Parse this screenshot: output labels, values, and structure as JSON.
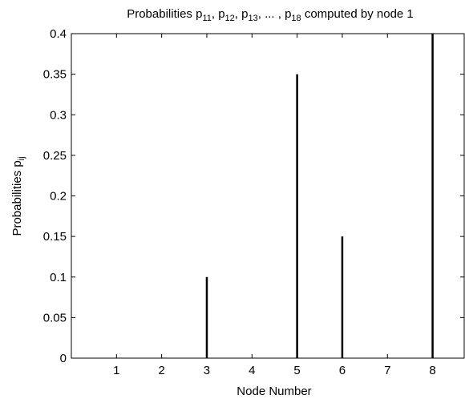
{
  "chart_data": {
    "type": "bar",
    "title": {
      "prefix": "Probabilities p",
      "s1": "11",
      "sep1": ", p",
      "s2": "12",
      "sep2": ", p",
      "s3": "13",
      "sep3": ", ... , p",
      "s4": "18",
      "suffix": " computed by node 1"
    },
    "xlabel": "Node Number",
    "ylabel": {
      "main": "Probabilities p",
      "sub": "ij"
    },
    "xticks": [
      "1",
      "2",
      "3",
      "4",
      "5",
      "6",
      "7",
      "8"
    ],
    "ylim": [
      0,
      0.4
    ],
    "yticks": [
      "0",
      "0.05",
      "0.1",
      "0.15",
      "0.2",
      "0.25",
      "0.3",
      "0.35",
      "0.4"
    ],
    "grid": false,
    "series": [
      {
        "x": [
          3,
          5,
          6,
          8
        ],
        "values": [
          0.1,
          0.35,
          0.15,
          0.4
        ]
      }
    ],
    "color": "#000000"
  }
}
